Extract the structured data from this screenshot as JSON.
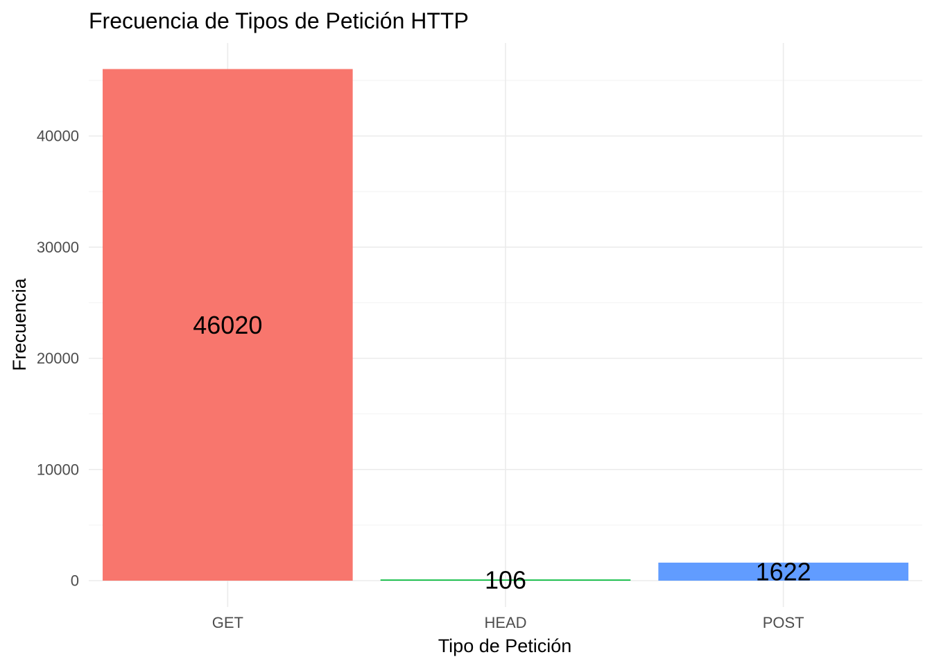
{
  "chart_data": {
    "type": "bar",
    "title": "Frecuencia de Tipos de Petición HTTP",
    "xlabel": "Tipo de Petición",
    "ylabel": "Frecuencia",
    "categories": [
      "GET",
      "HEAD",
      "POST"
    ],
    "values": [
      46020,
      106,
      1622
    ],
    "data_labels": [
      "46020",
      "106",
      "1622"
    ],
    "colors": [
      "#F8766D",
      "#00BA38",
      "#619CFF"
    ],
    "ylim": [
      0,
      48000
    ],
    "yticks": [
      0,
      10000,
      20000,
      30000,
      40000
    ],
    "ytick_labels": [
      "0",
      "10000",
      "20000",
      "30000",
      "40000"
    ],
    "grid": true,
    "legend": "none"
  }
}
